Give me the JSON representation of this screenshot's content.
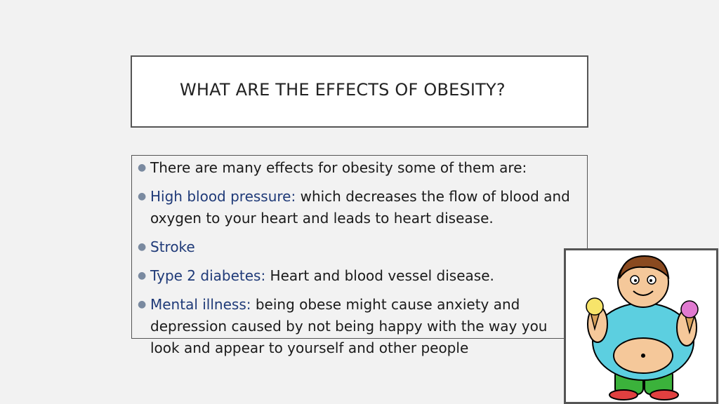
{
  "slide": {
    "title": "WHAT ARE THE EFFECTS OF OBESITY?",
    "bullets": [
      {
        "term": "",
        "text": "There are many effects for obesity some of them are:"
      },
      {
        "term": "High blood pressure:",
        "text": "  which decreases the flow of blood and oxygen to your heart and leads to heart disease."
      },
      {
        "term": "Stroke",
        "text": ""
      },
      {
        "term": "Type 2 diabetes:",
        "text": " Heart and blood vessel disease."
      },
      {
        "term": "Mental illness:",
        "text": " being obese might cause anxiety and depression caused by not being happy with the way you look and appear to yourself and other people"
      }
    ]
  },
  "colors": {
    "term": "#1f3a78",
    "bullet": "#7a8aa0"
  },
  "picture": {
    "icon": "overweight-cartoon-boy-icon"
  }
}
